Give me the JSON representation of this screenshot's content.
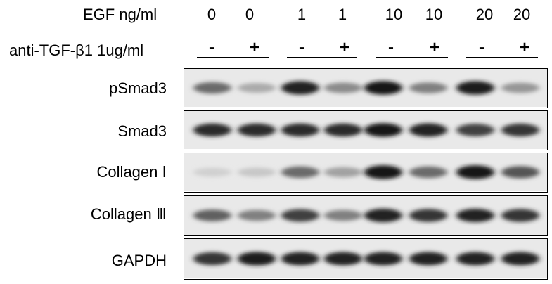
{
  "header": {
    "egf_label": "EGF ng/ml",
    "anti_label": "anti-TGF-β1 1ug/ml",
    "doses": [
      "0",
      "0",
      "1",
      "1",
      "10",
      "10",
      "20",
      "20"
    ],
    "treatment": [
      "-",
      "+",
      "-",
      "+",
      "-",
      "+",
      "-",
      "+"
    ]
  },
  "blots": [
    {
      "label": "pSmad3",
      "intensity": [
        0.55,
        0.25,
        0.9,
        0.4,
        0.95,
        0.45,
        0.92,
        0.35
      ]
    },
    {
      "label": "Smad3",
      "intensity": [
        0.85,
        0.85,
        0.85,
        0.85,
        0.95,
        0.9,
        0.75,
        0.8
      ]
    },
    {
      "label": "Collagen Ⅰ",
      "intensity": [
        0.08,
        0.12,
        0.55,
        0.3,
        0.95,
        0.55,
        0.95,
        0.65
      ]
    },
    {
      "label": "Collagen Ⅲ",
      "intensity": [
        0.6,
        0.45,
        0.75,
        0.45,
        0.9,
        0.8,
        0.88,
        0.8
      ]
    },
    {
      "label": "GAPDH",
      "intensity": [
        0.8,
        0.92,
        0.88,
        0.88,
        0.88,
        0.88,
        0.88,
        0.88
      ]
    }
  ]
}
